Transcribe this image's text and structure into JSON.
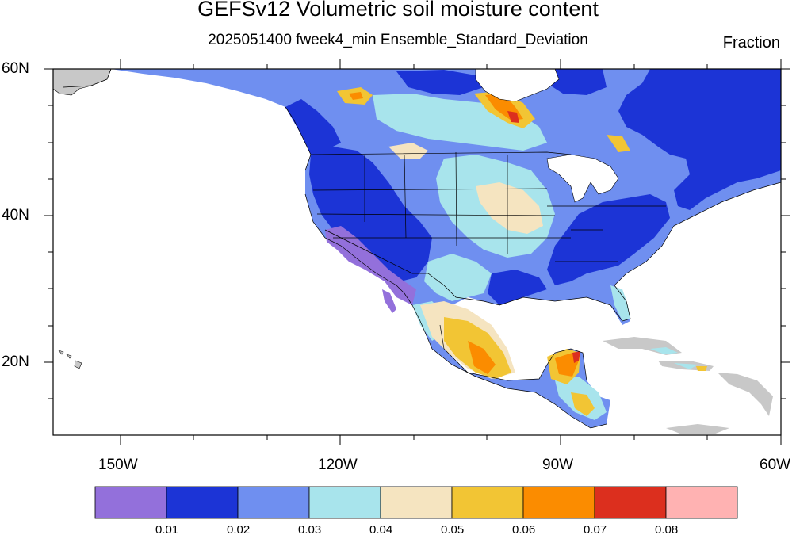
{
  "title": "GEFSv12 Volumetric soil moisture content",
  "subtitle": "2025051400 fweek4_min Ensemble_Standard_Deviation",
  "units": "Fraction",
  "lat_labels": [
    "60N",
    "40N",
    "20N"
  ],
  "lon_labels": [
    "150W",
    "120W",
    "90W",
    "60W"
  ],
  "colorbar": {
    "labels": [
      "0.01",
      "0.02",
      "0.03",
      "0.04",
      "0.05",
      "0.06",
      "0.07",
      "0.08"
    ],
    "colors": [
      "#9370db",
      "#1c34d6",
      "#6f8ff0",
      "#a8e4ec",
      "#f5e4c0",
      "#f2c534",
      "#fb8c00",
      "#dc2f1e",
      "#ffb2b2"
    ]
  },
  "map_colors": {
    "land_missing": "#c8c8c8",
    "boundary": "#000000"
  }
}
